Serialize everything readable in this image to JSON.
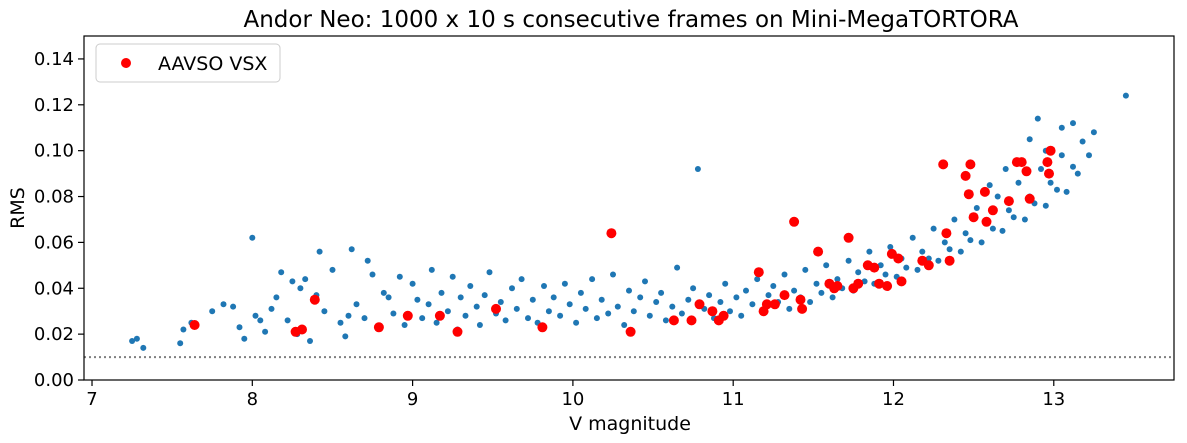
{
  "chart_data": {
    "type": "scatter",
    "title": "Andor Neo: 1000 x 10 s consecutive frames on Mini-MegaTORTORA",
    "xlabel": "V magnitude",
    "ylabel": "RMS",
    "xlim": [
      6.95,
      13.75
    ],
    "ylim": [
      0.0,
      0.15
    ],
    "xticks": [
      "7",
      "8",
      "9",
      "10",
      "11",
      "12",
      "13"
    ],
    "yticks": [
      "0.00",
      "0.02",
      "0.04",
      "0.06",
      "0.08",
      "0.10",
      "0.12",
      "0.14"
    ],
    "grid": false,
    "legend": {
      "placement": "top-left",
      "entries": [
        "AAVSO VSX"
      ]
    },
    "reference_line": {
      "y": 0.01,
      "style": "dotted",
      "color": "#7f7f7f"
    },
    "colors": {
      "field_stars": "#1f77b4",
      "vsx": "#ff0000"
    },
    "series": [
      {
        "role": "field-stars",
        "color": "#1f77b4",
        "note_points": "dense cloud; representative sample",
        "points": [
          [
            7.25,
            0.017
          ],
          [
            7.28,
            0.018
          ],
          [
            7.32,
            0.014
          ],
          [
            7.55,
            0.016
          ],
          [
            7.57,
            0.022
          ],
          [
            7.62,
            0.025
          ],
          [
            7.75,
            0.03
          ],
          [
            7.82,
            0.033
          ],
          [
            7.88,
            0.032
          ],
          [
            7.92,
            0.023
          ],
          [
            7.95,
            0.018
          ],
          [
            8.0,
            0.062
          ],
          [
            8.02,
            0.028
          ],
          [
            8.05,
            0.026
          ],
          [
            8.08,
            0.021
          ],
          [
            8.12,
            0.031
          ],
          [
            8.15,
            0.036
          ],
          [
            8.18,
            0.047
          ],
          [
            8.22,
            0.026
          ],
          [
            8.25,
            0.043
          ],
          [
            8.28,
            0.02
          ],
          [
            8.3,
            0.04
          ],
          [
            8.33,
            0.044
          ],
          [
            8.36,
            0.017
          ],
          [
            8.4,
            0.037
          ],
          [
            8.42,
            0.056
          ],
          [
            8.45,
            0.03
          ],
          [
            8.5,
            0.048
          ],
          [
            8.55,
            0.025
          ],
          [
            8.58,
            0.019
          ],
          [
            8.6,
            0.028
          ],
          [
            8.62,
            0.057
          ],
          [
            8.65,
            0.033
          ],
          [
            8.7,
            0.027
          ],
          [
            8.72,
            0.052
          ],
          [
            8.75,
            0.046
          ],
          [
            8.78,
            0.023
          ],
          [
            8.82,
            0.038
          ],
          [
            8.85,
            0.036
          ],
          [
            8.88,
            0.029
          ],
          [
            8.92,
            0.045
          ],
          [
            8.95,
            0.024
          ],
          [
            9.0,
            0.042
          ],
          [
            9.03,
            0.035
          ],
          [
            9.06,
            0.027
          ],
          [
            9.1,
            0.033
          ],
          [
            9.12,
            0.048
          ],
          [
            9.15,
            0.025
          ],
          [
            9.18,
            0.038
          ],
          [
            9.22,
            0.03
          ],
          [
            9.25,
            0.045
          ],
          [
            9.28,
            0.022
          ],
          [
            9.3,
            0.036
          ],
          [
            9.33,
            0.028
          ],
          [
            9.36,
            0.041
          ],
          [
            9.4,
            0.032
          ],
          [
            9.42,
            0.024
          ],
          [
            9.45,
            0.037
          ],
          [
            9.48,
            0.047
          ],
          [
            9.52,
            0.029
          ],
          [
            9.55,
            0.034
          ],
          [
            9.58,
            0.026
          ],
          [
            9.62,
            0.04
          ],
          [
            9.65,
            0.031
          ],
          [
            9.68,
            0.044
          ],
          [
            9.72,
            0.027
          ],
          [
            9.75,
            0.035
          ],
          [
            9.78,
            0.025
          ],
          [
            9.82,
            0.041
          ],
          [
            9.85,
            0.03
          ],
          [
            9.88,
            0.036
          ],
          [
            9.92,
            0.028
          ],
          [
            9.95,
            0.042
          ],
          [
            9.98,
            0.033
          ],
          [
            10.02,
            0.025
          ],
          [
            10.05,
            0.038
          ],
          [
            10.08,
            0.031
          ],
          [
            10.12,
            0.044
          ],
          [
            10.15,
            0.027
          ],
          [
            10.18,
            0.035
          ],
          [
            10.22,
            0.029
          ],
          [
            10.25,
            0.046
          ],
          [
            10.28,
            0.032
          ],
          [
            10.32,
            0.024
          ],
          [
            10.35,
            0.039
          ],
          [
            10.38,
            0.03
          ],
          [
            10.42,
            0.036
          ],
          [
            10.45,
            0.043
          ],
          [
            10.48,
            0.028
          ],
          [
            10.52,
            0.034
          ],
          [
            10.55,
            0.038
          ],
          [
            10.58,
            0.026
          ],
          [
            10.62,
            0.032
          ],
          [
            10.65,
            0.049
          ],
          [
            10.68,
            0.029
          ],
          [
            10.72,
            0.035
          ],
          [
            10.75,
            0.04
          ],
          [
            10.78,
            0.092
          ],
          [
            10.82,
            0.031
          ],
          [
            10.85,
            0.037
          ],
          [
            10.88,
            0.027
          ],
          [
            10.92,
            0.034
          ],
          [
            10.95,
            0.042
          ],
          [
            10.98,
            0.03
          ],
          [
            11.02,
            0.036
          ],
          [
            11.05,
            0.028
          ],
          [
            11.08,
            0.039
          ],
          [
            11.12,
            0.033
          ],
          [
            11.15,
            0.044
          ],
          [
            11.18,
            0.03
          ],
          [
            11.22,
            0.037
          ],
          [
            11.25,
            0.041
          ],
          [
            11.28,
            0.034
          ],
          [
            11.32,
            0.046
          ],
          [
            11.35,
            0.031
          ],
          [
            11.38,
            0.039
          ],
          [
            11.42,
            0.036
          ],
          [
            11.45,
            0.048
          ],
          [
            11.48,
            0.034
          ],
          [
            11.52,
            0.042
          ],
          [
            11.55,
            0.038
          ],
          [
            11.58,
            0.05
          ],
          [
            11.62,
            0.036
          ],
          [
            11.65,
            0.044
          ],
          [
            11.68,
            0.04
          ],
          [
            11.72,
            0.052
          ],
          [
            11.75,
            0.039
          ],
          [
            11.78,
            0.047
          ],
          [
            11.82,
            0.043
          ],
          [
            11.85,
            0.056
          ],
          [
            11.88,
            0.042
          ],
          [
            11.92,
            0.05
          ],
          [
            11.95,
            0.046
          ],
          [
            11.98,
            0.058
          ],
          [
            12.02,
            0.045
          ],
          [
            12.05,
            0.053
          ],
          [
            12.08,
            0.049
          ],
          [
            12.12,
            0.062
          ],
          [
            12.15,
            0.048
          ],
          [
            12.18,
            0.056
          ],
          [
            12.22,
            0.053
          ],
          [
            12.25,
            0.066
          ],
          [
            12.28,
            0.052
          ],
          [
            12.32,
            0.06
          ],
          [
            12.35,
            0.057
          ],
          [
            12.38,
            0.07
          ],
          [
            12.42,
            0.056
          ],
          [
            12.45,
            0.064
          ],
          [
            12.48,
            0.061
          ],
          [
            12.52,
            0.075
          ],
          [
            12.55,
            0.06
          ],
          [
            12.58,
            0.069
          ],
          [
            12.62,
            0.066
          ],
          [
            12.65,
            0.08
          ],
          [
            12.68,
            0.065
          ],
          [
            12.72,
            0.074
          ],
          [
            12.75,
            0.071
          ],
          [
            12.78,
            0.086
          ],
          [
            12.82,
            0.07
          ],
          [
            12.85,
            0.08
          ],
          [
            12.88,
            0.077
          ],
          [
            12.92,
            0.092
          ],
          [
            12.95,
            0.076
          ],
          [
            12.98,
            0.086
          ],
          [
            13.02,
            0.083
          ],
          [
            13.05,
            0.098
          ],
          [
            13.08,
            0.082
          ],
          [
            13.12,
            0.093
          ],
          [
            13.15,
            0.09
          ],
          [
            13.18,
            0.104
          ],
          [
            13.22,
            0.098
          ],
          [
            13.25,
            0.108
          ],
          [
            13.05,
            0.11
          ],
          [
            13.12,
            0.112
          ],
          [
            13.45,
            0.124
          ],
          [
            12.7,
            0.092
          ],
          [
            12.85,
            0.105
          ],
          [
            12.95,
            0.1
          ],
          [
            12.9,
            0.114
          ],
          [
            12.6,
            0.085
          ]
        ]
      },
      {
        "name": "AAVSO VSX",
        "role": "vsx-stars",
        "color": "#ff0000",
        "points": [
          [
            7.64,
            0.024
          ],
          [
            8.27,
            0.021
          ],
          [
            8.31,
            0.022
          ],
          [
            8.39,
            0.035
          ],
          [
            8.79,
            0.023
          ],
          [
            8.97,
            0.028
          ],
          [
            9.17,
            0.028
          ],
          [
            9.28,
            0.021
          ],
          [
            9.52,
            0.031
          ],
          [
            9.81,
            0.023
          ],
          [
            10.24,
            0.064
          ],
          [
            10.36,
            0.021
          ],
          [
            10.63,
            0.026
          ],
          [
            10.74,
            0.026
          ],
          [
            10.79,
            0.033
          ],
          [
            10.87,
            0.03
          ],
          [
            10.91,
            0.026
          ],
          [
            10.94,
            0.028
          ],
          [
            11.16,
            0.047
          ],
          [
            11.19,
            0.03
          ],
          [
            11.21,
            0.033
          ],
          [
            11.26,
            0.033
          ],
          [
            11.32,
            0.037
          ],
          [
            11.38,
            0.069
          ],
          [
            11.42,
            0.035
          ],
          [
            11.43,
            0.031
          ],
          [
            11.53,
            0.056
          ],
          [
            11.6,
            0.042
          ],
          [
            11.63,
            0.04
          ],
          [
            11.65,
            0.041
          ],
          [
            11.72,
            0.062
          ],
          [
            11.75,
            0.04
          ],
          [
            11.78,
            0.042
          ],
          [
            11.84,
            0.05
          ],
          [
            11.88,
            0.049
          ],
          [
            11.91,
            0.042
          ],
          [
            11.96,
            0.041
          ],
          [
            11.99,
            0.055
          ],
          [
            12.03,
            0.053
          ],
          [
            12.05,
            0.043
          ],
          [
            12.18,
            0.052
          ],
          [
            12.22,
            0.05
          ],
          [
            12.31,
            0.094
          ],
          [
            12.33,
            0.064
          ],
          [
            12.35,
            0.052
          ],
          [
            12.45,
            0.089
          ],
          [
            12.47,
            0.081
          ],
          [
            12.48,
            0.094
          ],
          [
            12.5,
            0.071
          ],
          [
            12.57,
            0.082
          ],
          [
            12.58,
            0.069
          ],
          [
            12.62,
            0.074
          ],
          [
            12.72,
            0.078
          ],
          [
            12.77,
            0.095
          ],
          [
            12.8,
            0.095
          ],
          [
            12.83,
            0.091
          ],
          [
            12.85,
            0.079
          ],
          [
            12.96,
            0.095
          ],
          [
            12.98,
            0.1
          ],
          [
            12.97,
            0.09
          ]
        ]
      }
    ]
  }
}
